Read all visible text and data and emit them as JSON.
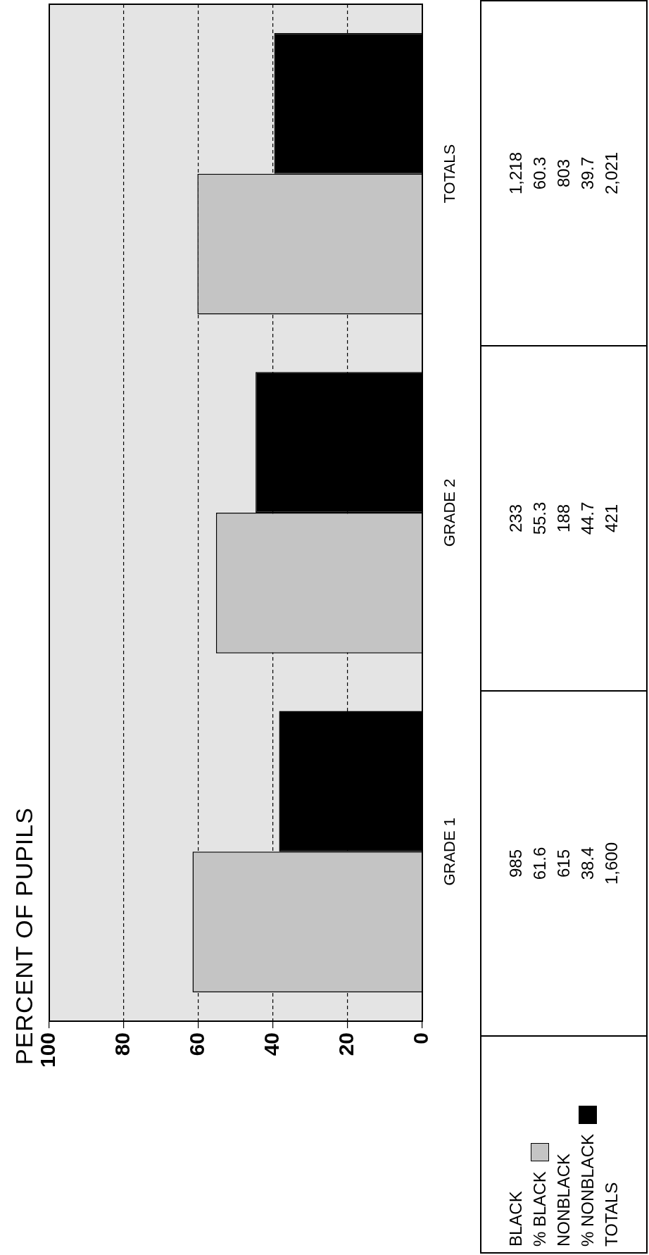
{
  "chart_data": {
    "type": "bar",
    "title": "PERCENT OF PUPILS",
    "orientation": "horizontal",
    "categories": [
      "TOTALS",
      "GRADE 2",
      "GRADE 1"
    ],
    "series": [
      {
        "name": "% BLACK",
        "color": "#c4c4c4",
        "values": [
          60.3,
          55.3,
          61.6
        ]
      },
      {
        "name": "% NONBLACK",
        "color": "#000000",
        "values": [
          39.7,
          44.7,
          38.4
        ]
      }
    ],
    "xlim": [
      100,
      0
    ],
    "xticks": [
      0,
      20,
      40,
      60,
      80,
      100
    ],
    "grid": "x",
    "legend": "bottom right",
    "data_labels": true,
    "annotations": [
      "BLACK",
      "1,218",
      "233",
      "985",
      "NONBLACK",
      "803",
      "188",
      "615",
      "TOTALS",
      "2,021",
      "421",
      "1,600"
    ]
  }
}
